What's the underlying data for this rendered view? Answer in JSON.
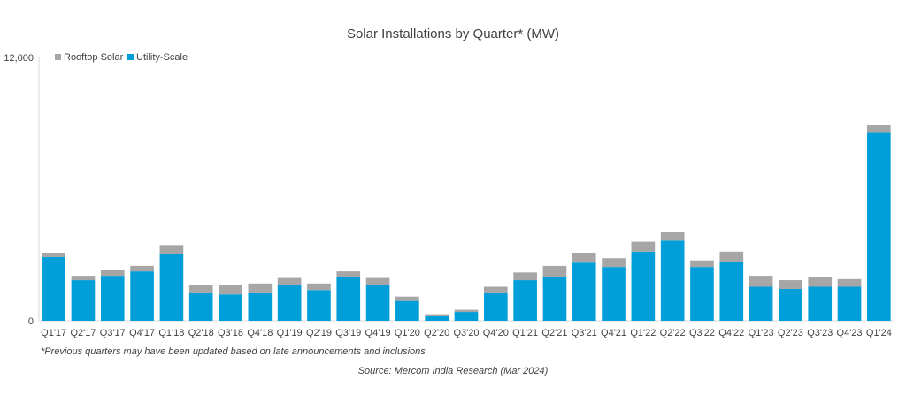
{
  "chart_data": {
    "type": "bar",
    "stacked": true,
    "title": "Solar Installations by Quarter* (MW)",
    "categories": [
      "Q1'17",
      "Q2'17",
      "Q3'17",
      "Q4'17",
      "Q1'18",
      "Q2'18",
      "Q3'18",
      "Q4'18",
      "Q1'19",
      "Q2'19",
      "Q3'19",
      "Q4'19",
      "Q1'20",
      "Q2'20",
      "Q3'20",
      "Q4'20",
      "Q1'21",
      "Q2'21",
      "Q3'21",
      "Q4'21",
      "Q1'22",
      "Q2'22",
      "Q3'22",
      "Q4'22",
      "Q1'23",
      "Q2'23",
      "Q3'23",
      "Q4'23",
      "Q1'24"
    ],
    "series": [
      {
        "name": "Utility-Scale",
        "color": "#009FDA",
        "values": [
          2900,
          1850,
          2050,
          2250,
          3050,
          1250,
          1200,
          1250,
          1650,
          1400,
          2000,
          1650,
          900,
          200,
          400,
          1250,
          1850,
          2000,
          2650,
          2450,
          3150,
          3650,
          2450,
          2700,
          1550,
          1450,
          1550,
          1550,
          8600
        ]
      },
      {
        "name": "Rooftop Solar",
        "color": "#A6A6A6",
        "values": [
          200,
          200,
          250,
          250,
          400,
          400,
          450,
          450,
          300,
          300,
          250,
          300,
          200,
          100,
          100,
          300,
          350,
          500,
          450,
          400,
          450,
          400,
          300,
          450,
          500,
          400,
          450,
          350,
          300
        ]
      }
    ],
    "y_ticks": [
      "0",
      "12,000"
    ],
    "ylim": [
      0,
      12000
    ],
    "legend": {
      "position": "top-left",
      "entries": [
        "Rooftop Solar",
        "Utility-Scale"
      ]
    }
  },
  "footnote": "*Previous quarters may have been updated based on late announcements and inclusions",
  "source": "Source: Mercom India Research (Mar 2024)"
}
